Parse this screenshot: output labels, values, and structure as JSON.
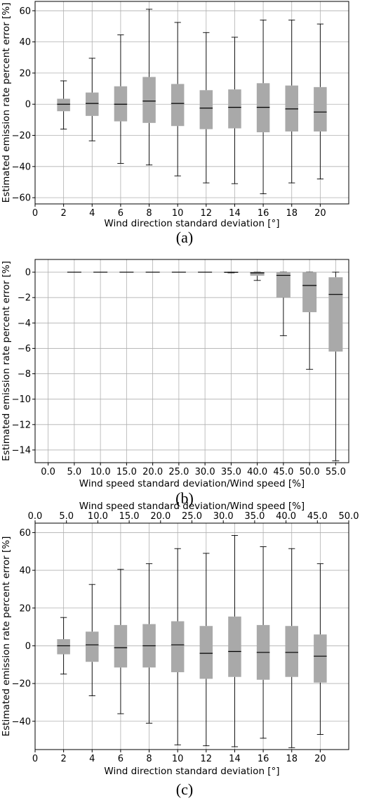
{
  "chart_data": [
    {
      "type": "box",
      "panel_label": "(a)",
      "xlabel": "Wind direction standard deviation [°]",
      "ylabel": "Estimated emission rate percent error [%]",
      "xlim": [
        0,
        22
      ],
      "ylim": [
        -64,
        66
      ],
      "xticks": [
        0,
        2,
        4,
        6,
        8,
        10,
        12,
        14,
        16,
        18,
        20
      ],
      "xtick_labels": [
        "0",
        "2",
        "4",
        "6",
        "8",
        "10",
        "12",
        "14",
        "16",
        "18",
        "20"
      ],
      "yticks": [
        -60,
        -40,
        -20,
        0,
        20,
        40,
        60
      ],
      "ytick_labels": [
        "−60",
        "−40",
        "−20",
        "0",
        "20",
        "40",
        "60"
      ],
      "grid": true,
      "boxes": [
        {
          "x": 2,
          "whislo": -16,
          "q1": -4.5,
          "med": 0,
          "q3": 3.5,
          "whishi": 15
        },
        {
          "x": 4,
          "whislo": -23.5,
          "q1": -7.5,
          "med": 0.5,
          "q3": 7.5,
          "whishi": 29.5
        },
        {
          "x": 6,
          "whislo": -38,
          "q1": -11,
          "med": 0,
          "q3": 11.5,
          "whishi": 44.5
        },
        {
          "x": 8,
          "whislo": -39,
          "q1": -12,
          "med": 2,
          "q3": 17.5,
          "whishi": 61
        },
        {
          "x": 10,
          "whislo": -46,
          "q1": -14,
          "med": 0.5,
          "q3": 13,
          "whishi": 52.5
        },
        {
          "x": 12,
          "whislo": -50.5,
          "q1": -16,
          "med": -2.5,
          "q3": 9,
          "whishi": 46
        },
        {
          "x": 14,
          "whislo": -51,
          "q1": -15.5,
          "med": -2,
          "q3": 9.5,
          "whishi": 43
        },
        {
          "x": 16,
          "whislo": -57.5,
          "q1": -18,
          "med": -2,
          "q3": 13.5,
          "whishi": 54
        },
        {
          "x": 18,
          "whislo": -50.5,
          "q1": -17.5,
          "med": -3,
          "q3": 12,
          "whishi": 54
        },
        {
          "x": 20,
          "whislo": -48,
          "q1": -17.5,
          "med": -5,
          "q3": 11,
          "whishi": 51.5
        }
      ]
    },
    {
      "type": "box",
      "panel_label": "(b)",
      "xlabel": "Wind speed standard deviation/Wind speed [%]",
      "ylabel": "Estimated emission rate percent error [%]",
      "xlim": [
        -2.5,
        57.5
      ],
      "ylim": [
        -15,
        1
      ],
      "xticks": [
        0,
        5,
        10,
        15,
        20,
        25,
        30,
        35,
        40,
        45,
        50,
        55
      ],
      "xtick_labels": [
        "0.0",
        "5.0",
        "10.0",
        "15.0",
        "20.0",
        "25.0",
        "30.0",
        "35.0",
        "40.0",
        "45.0",
        "50.0",
        "55.0"
      ],
      "yticks": [
        -14,
        -12,
        -10,
        -8,
        -6,
        -4,
        -2,
        0
      ],
      "ytick_labels": [
        "−14",
        "−12",
        "−10",
        "−8",
        "−6",
        "−4",
        "−2",
        "0"
      ],
      "grid": true,
      "boxes": [
        {
          "x": 5,
          "whislo": 0,
          "q1": 0,
          "med": 0,
          "q3": 0,
          "whishi": 0
        },
        {
          "x": 10,
          "whislo": 0,
          "q1": 0,
          "med": 0,
          "q3": 0,
          "whishi": 0
        },
        {
          "x": 15,
          "whislo": 0,
          "q1": 0,
          "med": 0,
          "q3": 0,
          "whishi": 0
        },
        {
          "x": 20,
          "whislo": 0,
          "q1": 0,
          "med": 0,
          "q3": 0,
          "whishi": 0
        },
        {
          "x": 25,
          "whislo": 0,
          "q1": 0,
          "med": 0,
          "q3": 0,
          "whishi": 0
        },
        {
          "x": 30,
          "whislo": 0,
          "q1": 0,
          "med": 0,
          "q3": 0,
          "whishi": 0
        },
        {
          "x": 35,
          "whislo": -0.05,
          "q1": -0.03,
          "med": -0.01,
          "q3": 0,
          "whishi": 0
        },
        {
          "x": 40,
          "whislo": -0.65,
          "q1": -0.28,
          "med": -0.05,
          "q3": 0,
          "whishi": 0
        },
        {
          "x": 45,
          "whislo": -5,
          "q1": -2,
          "med": -0.25,
          "q3": 0,
          "whishi": 0
        },
        {
          "x": 50,
          "whislo": -7.65,
          "q1": -3.15,
          "med": -1.05,
          "q3": 0,
          "whishi": 0
        },
        {
          "x": 55,
          "whislo": -14.85,
          "q1": -6.25,
          "med": -1.75,
          "q3": -0.4,
          "whishi": 0
        }
      ]
    },
    {
      "type": "box",
      "panel_label": "(c)",
      "xlabel": "Wind direction standard deviation [°]",
      "x2label": "Wind speed standard deviation/Wind speed [%]",
      "ylabel": "Estimated emission rate percent error [%]",
      "xlim": [
        0,
        22
      ],
      "ylim": [
        -55,
        65
      ],
      "xticks": [
        0,
        2,
        4,
        6,
        8,
        10,
        12,
        14,
        16,
        18,
        20
      ],
      "xtick_labels": [
        "0",
        "2",
        "4",
        "6",
        "8",
        "10",
        "12",
        "14",
        "16",
        "18",
        "20"
      ],
      "x2ticks": [
        0,
        2.2,
        4.4,
        6.6,
        8.8,
        11,
        13.2,
        15.4,
        17.6,
        19.8,
        22
      ],
      "x2tick_labels": [
        "0.0",
        "5.0",
        "10.0",
        "15.0",
        "20.0",
        "25.0",
        "30.0",
        "35.0",
        "40.0",
        "45.0",
        "50.0"
      ],
      "yticks": [
        -40,
        -20,
        0,
        20,
        40,
        60
      ],
      "ytick_labels": [
        "−40",
        "−20",
        "0",
        "20",
        "40",
        "60"
      ],
      "grid": true,
      "boxes": [
        {
          "x": 2,
          "whislo": -15,
          "q1": -4.5,
          "med": 0,
          "q3": 3.5,
          "whishi": 15
        },
        {
          "x": 4,
          "whislo": -26.5,
          "q1": -8.5,
          "med": 0.5,
          "q3": 7.5,
          "whishi": 32.5
        },
        {
          "x": 6,
          "whislo": -36,
          "q1": -11.5,
          "med": -1,
          "q3": 11,
          "whishi": 40.5
        },
        {
          "x": 8,
          "whislo": -41,
          "q1": -11.5,
          "med": 0,
          "q3": 11.5,
          "whishi": 43.5
        },
        {
          "x": 10,
          "whislo": -52.5,
          "q1": -14,
          "med": 0.5,
          "q3": 13,
          "whishi": 51.5
        },
        {
          "x": 12,
          "whislo": -53,
          "q1": -17.5,
          "med": -4,
          "q3": 10.5,
          "whishi": 49
        },
        {
          "x": 14,
          "whislo": -53.5,
          "q1": -16.5,
          "med": -3,
          "q3": 15.5,
          "whishi": 58.5
        },
        {
          "x": 16,
          "whislo": -49,
          "q1": -18,
          "med": -3.5,
          "q3": 11,
          "whishi": 52.5
        },
        {
          "x": 18,
          "whislo": -54,
          "q1": -16.5,
          "med": -3.5,
          "q3": 10.5,
          "whishi": 51.5
        },
        {
          "x": 20,
          "whislo": -47,
          "q1": -19.5,
          "med": -5.5,
          "q3": 6,
          "whishi": 43.5
        }
      ]
    }
  ]
}
